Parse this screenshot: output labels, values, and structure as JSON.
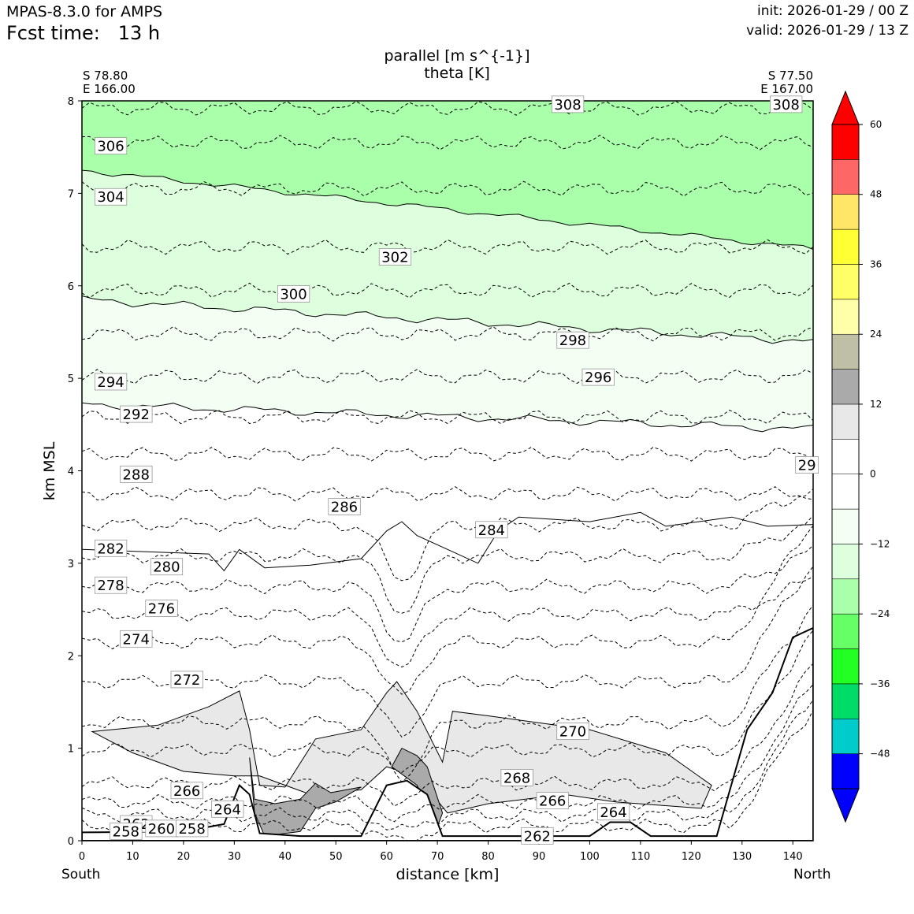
{
  "header": {
    "model": "MPAS-8.3.0 for AMPS",
    "fcst_time": "Fcst time:   13 h",
    "init": "init: 2026-01-29 / 00 Z",
    "valid": "valid: 2026-01-29 / 13 Z"
  },
  "titles": {
    "line1": "parallel [m s^{-1}]",
    "line2": "theta [K]"
  },
  "corners": {
    "left_lat": "S 78.80",
    "left_lon": "E 166.00",
    "right_lat": "S 77.50",
    "right_lon": "E 167.00"
  },
  "endpoints": {
    "south": "South",
    "north": "North"
  },
  "chart_data": {
    "type": "cross-section",
    "xlabel": "distance [km]",
    "ylabel": "km MSL",
    "xlim": [
      0,
      144
    ],
    "ylim": [
      0,
      8
    ],
    "xticks": [
      0,
      10,
      20,
      30,
      40,
      50,
      60,
      70,
      80,
      90,
      100,
      110,
      120,
      130,
      140
    ],
    "yticks": [
      0,
      1,
      2,
      3,
      4,
      5,
      6,
      7,
      8
    ],
    "theta_contour_labels": [
      {
        "text": "308",
        "x": 93,
        "y": 7.95
      },
      {
        "text": "308",
        "x": 136,
        "y": 7.95
      },
      {
        "text": "306",
        "x": 3,
        "y": 7.5
      },
      {
        "text": "304",
        "x": 3,
        "y": 6.95
      },
      {
        "text": "302",
        "x": 59,
        "y": 6.3
      },
      {
        "text": "300",
        "x": 39,
        "y": 5.9
      },
      {
        "text": "298",
        "x": 94,
        "y": 5.4
      },
      {
        "text": "296",
        "x": 99,
        "y": 5.0
      },
      {
        "text": "294",
        "x": 3,
        "y": 4.95
      },
      {
        "text": "292",
        "x": 8,
        "y": 4.6
      },
      {
        "text": "29",
        "x": 141,
        "y": 4.05
      },
      {
        "text": "288",
        "x": 8,
        "y": 3.95
      },
      {
        "text": "286",
        "x": 49,
        "y": 3.6
      },
      {
        "text": "284",
        "x": 78,
        "y": 3.35
      },
      {
        "text": "282",
        "x": 3,
        "y": 3.15
      },
      {
        "text": "280",
        "x": 14,
        "y": 2.95
      },
      {
        "text": "278",
        "x": 3,
        "y": 2.75
      },
      {
        "text": "276",
        "x": 13,
        "y": 2.5
      },
      {
        "text": "274",
        "x": 8,
        "y": 2.17
      },
      {
        "text": "272",
        "x": 18,
        "y": 1.73
      },
      {
        "text": "270",
        "x": 94,
        "y": 1.17
      },
      {
        "text": "268",
        "x": 83,
        "y": 0.67
      },
      {
        "text": "266",
        "x": 18,
        "y": 0.53
      },
      {
        "text": "266",
        "x": 90,
        "y": 0.42
      },
      {
        "text": "264",
        "x": 26,
        "y": 0.33
      },
      {
        "text": "264",
        "x": 102,
        "y": 0.3
      },
      {
        "text": "262",
        "x": 8,
        "y": 0.17
      },
      {
        "text": "262",
        "x": 87,
        "y": 0.04
      },
      {
        "text": "260",
        "x": 13,
        "y": 0.12
      },
      {
        "text": "258",
        "x": 19,
        "y": 0.12
      },
      {
        "text": "258",
        "x": 6,
        "y": 0.09
      }
    ],
    "colorbar": {
      "levels": [
        -54,
        -48,
        -42,
        -36,
        -30,
        -24,
        -18,
        -12,
        -6,
        0,
        6,
        12,
        18,
        24,
        30,
        36,
        42,
        48,
        54,
        60
      ],
      "colors": [
        "#0000ff",
        "#00cccc",
        "#00dd66",
        "#22ff22",
        "#66ff66",
        "#aaffaa",
        "#ddffdd",
        "#f2fff2",
        "#ffffff",
        "#ffffff",
        "#e8e8e8",
        "#aaaaaa",
        "#bfbfa6",
        "#ffffaa",
        "#ffff66",
        "#ffff33",
        "#ffe666",
        "#ff6666",
        "#ff0000"
      ],
      "under_color": "#0000ff",
      "over_color": "#ff0000",
      "tick_labels": [
        "60",
        "48",
        "36",
        "24",
        "12",
        "0",
        "−12",
        "−24",
        "−36",
        "−48"
      ],
      "tick_values": [
        60,
        48,
        36,
        24,
        12,
        0,
        -12,
        -24,
        -36,
        -48
      ]
    },
    "fill_colors": {
      "band_le_neg18": "#aaffaa",
      "band_neg18_neg12": "#ddffdd",
      "band_neg12_neg6": "#f2fff2",
      "band_6_12": "#e8e8e8",
      "band_12_18": "#aaaaaa"
    }
  }
}
